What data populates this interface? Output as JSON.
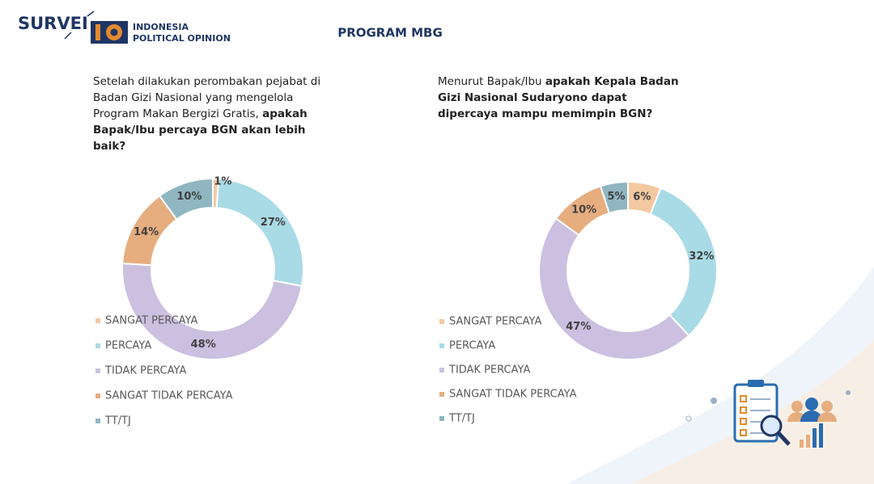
{
  "header": {
    "brand": "SURVEI",
    "org_name": [
      "INDONESIA",
      "POLITICAL OPINION"
    ],
    "title": "PROGRAM MBG"
  },
  "chart_data": [
    {
      "type": "donut",
      "question": [
        {
          "text": "Setelah dilakukan perombakan pejabat di Badan Gizi Nasional yang mengelola Program Makan Bergizi Gratis, ",
          "bold": false
        },
        {
          "text": "apakah Bapak/Ibu percaya BGN akan lebih baik?",
          "bold": true
        }
      ],
      "categories": [
        "SANGAT PERCAYA",
        "PERCAYA",
        "TIDAK PERCAYA",
        "SANGAT TIDAK PERCAYA",
        "TT/TJ"
      ],
      "values": [
        1,
        27,
        48,
        14,
        10
      ],
      "value_labels": [
        "1%",
        "27%",
        "48%",
        "14%",
        "10%"
      ],
      "colors": [
        "#f4c9a1",
        "#a9dbe6",
        "#cbc0e0",
        "#e6ad7e",
        "#8fb6c1"
      ]
    },
    {
      "type": "donut",
      "question": [
        {
          "text": "Menurut Bapak/Ibu ",
          "bold": false
        },
        {
          "text": "apakah Kepala Badan Gizi Nasional Sudaryono dapat dipercaya mampu memimpin BGN?",
          "bold": true
        }
      ],
      "categories": [
        "SANGAT PERCAYA",
        "PERCAYA",
        "TIDAK PERCAYA",
        "SANGAT TIDAK PERCAYA",
        "TT/TJ"
      ],
      "values": [
        6,
        32,
        47,
        10,
        5
      ],
      "value_labels": [
        "6%",
        "32%",
        "47%",
        "10%",
        "5%"
      ],
      "colors": [
        "#f4c9a1",
        "#a9dbe6",
        "#cbc0e0",
        "#e6ad7e",
        "#8fb6c1"
      ]
    }
  ]
}
